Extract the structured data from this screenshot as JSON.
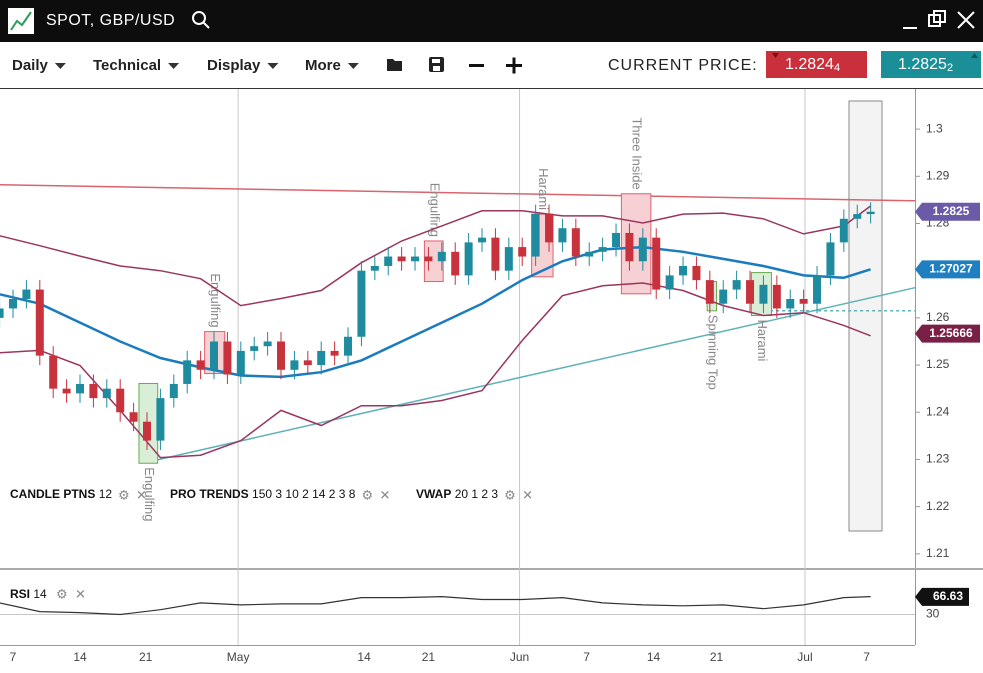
{
  "window": {
    "title": "SPOT, GBP/USD"
  },
  "toolbar": {
    "menus": [
      "Daily",
      "Technical",
      "Display",
      "More"
    ],
    "current_price_label": "CURRENT PRICE:",
    "bid": {
      "price": "1.2824",
      "pipette": "4",
      "color": "#c9303c"
    },
    "ask": {
      "price": "1.2825",
      "pipette": "2",
      "color": "#1b8f97"
    }
  },
  "chart_data": [
    {
      "type": "candlestick",
      "x": [
        -1,
        0,
        1,
        2,
        3,
        4,
        5,
        6,
        7,
        8,
        9,
        10,
        11,
        12,
        13,
        14,
        15,
        16,
        17,
        18,
        19,
        20,
        21,
        22,
        23,
        24,
        25,
        26,
        27,
        28,
        29,
        30,
        31,
        32,
        33,
        34,
        35,
        36,
        37,
        38,
        39,
        40,
        41,
        42,
        43,
        44,
        45,
        46,
        47,
        48,
        49,
        50,
        51,
        52,
        53,
        54,
        55,
        56,
        57,
        58,
        59,
        60,
        61,
        62,
        63,
        64
      ],
      "open": [
        1.26,
        1.262,
        1.264,
        1.266,
        1.252,
        1.245,
        1.244,
        1.246,
        1.243,
        1.245,
        1.24,
        1.238,
        1.234,
        1.243,
        1.246,
        1.251,
        1.249,
        1.255,
        1.248,
        1.253,
        1.254,
        1.255,
        1.249,
        1.251,
        1.25,
        1.253,
        1.252,
        1.256,
        1.27,
        1.271,
        1.273,
        1.272,
        1.273,
        1.272,
        1.274,
        1.269,
        1.276,
        1.277,
        1.27,
        1.275,
        1.273,
        1.282,
        1.276,
        1.279,
        1.273,
        1.274,
        1.275,
        1.278,
        1.272,
        1.277,
        1.266,
        1.269,
        1.271,
        1.268,
        1.263,
        1.266,
        1.268,
        1.263,
        1.267,
        1.262,
        1.264,
        1.263,
        1.269,
        1.276,
        1.281,
        1.282
      ],
      "high": [
        1.264,
        1.266,
        1.268,
        1.268,
        1.254,
        1.247,
        1.248,
        1.248,
        1.247,
        1.247,
        1.242,
        1.24,
        1.245,
        1.248,
        1.253,
        1.253,
        1.257,
        1.257,
        1.255,
        1.256,
        1.257,
        1.257,
        1.253,
        1.253,
        1.255,
        1.255,
        1.258,
        1.272,
        1.273,
        1.275,
        1.275,
        1.275,
        1.275,
        1.276,
        1.276,
        1.278,
        1.279,
        1.279,
        1.277,
        1.277,
        1.284,
        1.284,
        1.281,
        1.281,
        1.276,
        1.277,
        1.28,
        1.28,
        1.279,
        1.279,
        1.271,
        1.273,
        1.273,
        1.27,
        1.268,
        1.27,
        1.27,
        1.269,
        1.269,
        1.266,
        1.266,
        1.271,
        1.278,
        1.283,
        1.284,
        1.2845
      ],
      "low": [
        1.258,
        1.26,
        1.262,
        1.25,
        1.243,
        1.242,
        1.242,
        1.241,
        1.241,
        1.238,
        1.236,
        1.232,
        1.232,
        1.241,
        1.244,
        1.247,
        1.247,
        1.246,
        1.246,
        1.251,
        1.252,
        1.247,
        1.247,
        1.248,
        1.248,
        1.25,
        1.25,
        1.254,
        1.268,
        1.269,
        1.27,
        1.27,
        1.27,
        1.27,
        1.267,
        1.267,
        1.274,
        1.268,
        1.268,
        1.271,
        1.271,
        1.274,
        1.274,
        1.271,
        1.271,
        1.272,
        1.273,
        1.27,
        1.27,
        1.264,
        1.264,
        1.267,
        1.266,
        1.261,
        1.261,
        1.264,
        1.261,
        1.261,
        1.26,
        1.26,
        1.261,
        1.261,
        1.267,
        1.274,
        1.279,
        1.28
      ],
      "close": [
        1.262,
        1.264,
        1.266,
        1.252,
        1.245,
        1.244,
        1.246,
        1.243,
        1.245,
        1.24,
        1.238,
        1.234,
        1.243,
        1.246,
        1.251,
        1.249,
        1.255,
        1.248,
        1.253,
        1.254,
        1.255,
        1.249,
        1.251,
        1.25,
        1.253,
        1.252,
        1.256,
        1.27,
        1.271,
        1.273,
        1.272,
        1.273,
        1.272,
        1.274,
        1.269,
        1.276,
        1.277,
        1.27,
        1.275,
        1.273,
        1.282,
        1.276,
        1.279,
        1.273,
        1.274,
        1.275,
        1.278,
        1.272,
        1.277,
        1.266,
        1.269,
        1.271,
        1.268,
        1.263,
        1.266,
        1.268,
        1.263,
        1.267,
        1.262,
        1.264,
        1.263,
        1.269,
        1.276,
        1.281,
        1.282,
        1.2825
      ],
      "up_color": "#1e8c9e",
      "down_color": "#c7323d",
      "xlim": [
        -0.97,
        67.31
      ],
      "ylim": [
        1.207,
        1.3085
      ],
      "xticks": [
        {
          "value": 0,
          "label": "7"
        },
        {
          "value": 5,
          "label": "14"
        },
        {
          "value": 9.9,
          "label": "21"
        },
        {
          "value": 16.8,
          "label": "May"
        },
        {
          "value": 26.2,
          "label": "14"
        },
        {
          "value": 31,
          "label": "21"
        },
        {
          "value": 37.8,
          "label": "Jun"
        },
        {
          "value": 42.8,
          "label": "7"
        },
        {
          "value": 47.8,
          "label": "14"
        },
        {
          "value": 52.5,
          "label": "21"
        },
        {
          "value": 59.1,
          "label": "Jul"
        },
        {
          "value": 63.7,
          "label": "7"
        }
      ],
      "yticks": [
        1.21,
        1.22,
        1.23,
        1.24,
        1.25,
        1.26,
        1.27,
        1.28,
        1.29,
        1.3
      ],
      "bands": {
        "x": [
          -1,
          2,
          5,
          8,
          11,
          14,
          17,
          20,
          23,
          26,
          29,
          32,
          35,
          38,
          41,
          44,
          47,
          50,
          53,
          56,
          59,
          62,
          64
        ],
        "upper": [
          1.2774,
          1.2753,
          1.2731,
          1.271,
          1.27,
          1.2683,
          1.2626,
          1.2641,
          1.2658,
          1.2717,
          1.2763,
          1.2795,
          1.2827,
          1.2827,
          1.2816,
          1.2816,
          1.2801,
          1.282,
          1.2822,
          1.281,
          1.2778,
          1.2795,
          1.2837
        ],
        "middle": [
          1.265,
          1.263,
          1.259,
          1.255,
          1.2515,
          1.2495,
          1.2478,
          1.2475,
          1.2485,
          1.251,
          1.255,
          1.259,
          1.263,
          1.268,
          1.272,
          1.2745,
          1.275,
          1.274,
          1.2725,
          1.271,
          1.269,
          1.2685,
          1.2703
        ],
        "lower": [
          1.2526,
          1.2531,
          1.2499,
          1.2404,
          1.2304,
          1.2309,
          1.234,
          1.2404,
          1.2372,
          1.2414,
          1.2414,
          1.2425,
          1.2446,
          1.2552,
          1.2647,
          1.2668,
          1.2674,
          1.2658,
          1.2626,
          1.2605,
          1.2611,
          1.2584,
          1.2562
        ],
        "band_color": "#9b3560",
        "middle_color": "#1a7bbf"
      },
      "trendlines": [
        {
          "x": [
            -0.97,
            67.31
          ],
          "values": [
            1.2882,
            1.2848
          ],
          "color": "#d9646e"
        },
        {
          "x": [
            10.6,
            67.31
          ],
          "values": [
            1.2298,
            1.2664
          ],
          "color": "#5fb3b8"
        },
        {
          "x": [
            56.5,
            67.31
          ],
          "values": [
            1.2615,
            1.2615
          ],
          "color": "#5fb3b8",
          "dashed": true
        }
      ],
      "patterns": [
        {
          "label": "Engulfing",
          "x": [
            9.4,
            10.8
          ],
          "high": 1.2461,
          "low": 1.2292,
          "signal": "bullish"
        },
        {
          "label": "Engulfing",
          "x": [
            14.3,
            15.8
          ],
          "high": 1.2571,
          "low": 1.2482,
          "signal": "bearish"
        },
        {
          "label": "Engulfing",
          "x": [
            30.7,
            32.1
          ],
          "high": 1.2763,
          "low": 1.2677,
          "signal": "bearish"
        },
        {
          "label": "Harami",
          "x": [
            38.7,
            40.3
          ],
          "high": 1.282,
          "low": 1.2687,
          "signal": "bearish"
        },
        {
          "label": "Three Inside",
          "x": [
            45.4,
            47.6
          ],
          "high": 1.2863,
          "low": 1.2651,
          "signal": "bearish"
        },
        {
          "label": "Spinning Top",
          "x": [
            51.8,
            52.5
          ],
          "high": 1.2677,
          "low": 1.2615,
          "signal": "bullish"
        },
        {
          "label": "Harami",
          "x": [
            55.1,
            56.6
          ],
          "high": 1.2696,
          "low": 1.2605,
          "signal": "bullish"
        }
      ],
      "pattern_colors": {
        "bullish": {
          "stroke": "#6aa84f",
          "fill": "#d9eed6"
        },
        "bearish": {
          "stroke": "#e06070",
          "fill": "#f6d0d2"
        }
      },
      "price_tags": [
        {
          "value": 1.2825,
          "color": "#6a5aa8"
        },
        {
          "value": 1.27027,
          "color": "#1f7fc0"
        },
        {
          "value": 1.25666,
          "color": "#7a1f45"
        }
      ],
      "indicators": [
        {
          "name": "CANDLE PTNS",
          "params": "12"
        },
        {
          "name": "PRO TRENDS",
          "params": "150 3 10 2 14 2 3 8"
        },
        {
          "name": "VWAP",
          "params": "20 1 2 3"
        }
      ]
    },
    {
      "type": "line",
      "name": "RSI",
      "params": "14",
      "x": [
        -1,
        2,
        5,
        8,
        11,
        14,
        17,
        20,
        23,
        26,
        29,
        32,
        35,
        38,
        41,
        44,
        47,
        50,
        53,
        56,
        59,
        62,
        64
      ],
      "values": [
        54,
        36,
        34,
        30,
        40,
        54,
        50,
        52,
        52,
        65,
        65,
        67,
        61,
        61,
        65,
        54,
        50,
        48,
        50,
        42,
        50,
        65,
        67
      ],
      "color": "#333333",
      "xlim": [
        -0.97,
        67.31
      ],
      "ylim": [
        -31,
        118
      ],
      "yticks": [
        30
      ],
      "grid": true,
      "last_value": 66.63
    }
  ]
}
